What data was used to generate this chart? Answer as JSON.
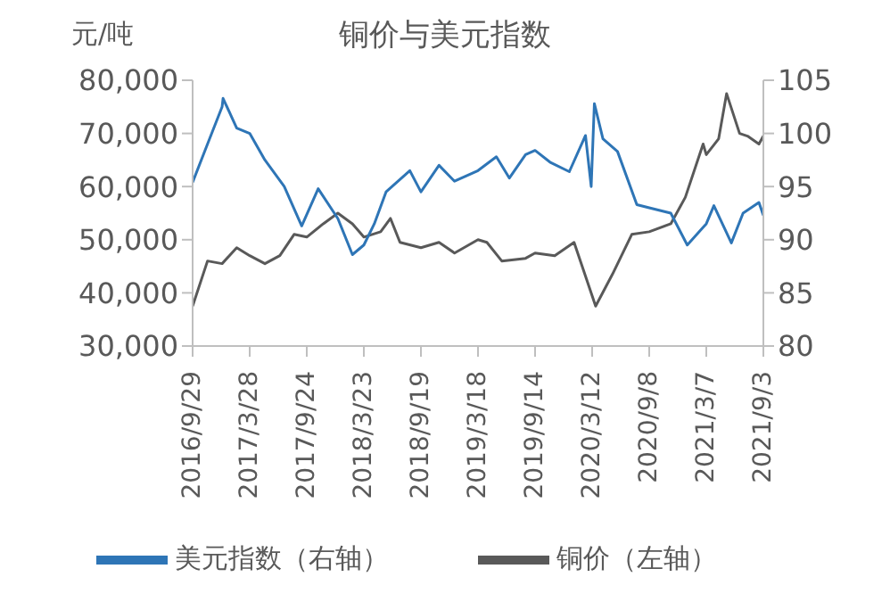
{
  "chart_data": {
    "type": "line",
    "title": "铜价与美元指数",
    "ylabel": "元/吨",
    "xlim": [
      "2016-09-29",
      "2021-09-03"
    ],
    "xticks": [
      {
        "value": "2016-09-29",
        "label": "2016/9/29"
      },
      {
        "value": "2017-03-28",
        "label": "2017/3/28"
      },
      {
        "value": "2017-09-24",
        "label": "2017/9/24"
      },
      {
        "value": "2018-03-23",
        "label": "2018/3/23"
      },
      {
        "value": "2018-09-19",
        "label": "2018/9/19"
      },
      {
        "value": "2019-03-18",
        "label": "2019/3/18"
      },
      {
        "value": "2019-09-14",
        "label": "2019/9/14"
      },
      {
        "value": "2020-03-12",
        "label": "2020/3/12"
      },
      {
        "value": "2020-09-08",
        "label": "2020/9/8"
      },
      {
        "value": "2021-03-07",
        "label": "2021/3/7"
      },
      {
        "value": "2021-09-03",
        "label": "2021/9/3"
      }
    ],
    "ylim": [
      30000,
      80000
    ],
    "yticks": [
      {
        "value": 30000,
        "label": "30,000"
      },
      {
        "value": 40000,
        "label": "40,000"
      },
      {
        "value": 50000,
        "label": "50,000"
      },
      {
        "value": 60000,
        "label": "60,000"
      },
      {
        "value": 70000,
        "label": "70,000"
      },
      {
        "value": 80000,
        "label": "80,000"
      }
    ],
    "y2lim": [
      80,
      105
    ],
    "y2ticks": [
      80,
      85,
      90,
      95,
      100,
      105
    ],
    "grid": false,
    "legend": "bottom",
    "marker": "none",
    "series": [
      {
        "name": "铜价（左轴）",
        "color": "#595959",
        "x": [
          "2016-09-29",
          "2016-11-15",
          "2016-12-31",
          "2017-02-15",
          "2017-03-28",
          "2017-05-15",
          "2017-07-01",
          "2017-08-15",
          "2017-09-24",
          "2017-11-15",
          "2017-12-31",
          "2018-02-15",
          "2018-03-23",
          "2018-05-15",
          "2018-06-15",
          "2018-07-15",
          "2018-09-19",
          "2018-11-15",
          "2019-01-03",
          "2019-03-18",
          "2019-04-15",
          "2019-06-01",
          "2019-08-15",
          "2019-09-14",
          "2019-11-15",
          "2020-01-15",
          "2020-03-23",
          "2020-05-15",
          "2020-07-15",
          "2020-09-08",
          "2020-11-15",
          "2020-12-31",
          "2021-02-25",
          "2021-03-07",
          "2021-04-15",
          "2021-05-10",
          "2021-06-20",
          "2021-07-15",
          "2021-08-20",
          "2021-09-03"
        ],
        "values": [
          37500,
          46000,
          45500,
          48500,
          47000,
          45500,
          47000,
          51000,
          50500,
          53000,
          55000,
          53000,
          50500,
          51500,
          54000,
          49500,
          48500,
          49500,
          47500,
          50000,
          49500,
          46000,
          46500,
          47500,
          47000,
          49500,
          37500,
          43500,
          51000,
          51500,
          53000,
          58000,
          68000,
          66000,
          69000,
          77500,
          70000,
          69500,
          68000,
          69500
        ]
      },
      {
        "name": "美元指数（右轴）",
        "color": "#2e75b6",
        "axis": "y2",
        "x": [
          "2016-09-29",
          "2016-11-15",
          "2016-12-31",
          "2017-01-03",
          "2017-02-15",
          "2017-03-28",
          "2017-05-15",
          "2017-07-15",
          "2017-09-08",
          "2017-10-30",
          "2017-12-31",
          "2018-02-15",
          "2018-03-23",
          "2018-04-25",
          "2018-06-01",
          "2018-08-15",
          "2018-09-19",
          "2018-11-15",
          "2019-01-03",
          "2019-03-18",
          "2019-05-15",
          "2019-06-25",
          "2019-08-15",
          "2019-09-14",
          "2019-10-31",
          "2019-12-31",
          "2020-02-20",
          "2020-03-09",
          "2020-03-19",
          "2020-04-15",
          "2020-05-31",
          "2020-07-31",
          "2020-09-08",
          "2020-11-15",
          "2021-01-06",
          "2021-03-07",
          "2021-03-31",
          "2021-05-25",
          "2021-07-01",
          "2021-08-20",
          "2021-09-03"
        ],
        "values": [
          95.4,
          99,
          102.5,
          103.3,
          100.5,
          100,
          97.5,
          95,
          91.3,
          94.8,
          92,
          88.6,
          89.5,
          91.5,
          94.5,
          96.5,
          94.5,
          97,
          95.5,
          96.5,
          97.8,
          95.8,
          98,
          98.4,
          97.3,
          96.4,
          99.8,
          95,
          102.8,
          99.5,
          98.3,
          93.3,
          93,
          92.5,
          89.5,
          91.5,
          93.2,
          89.7,
          92.5,
          93.5,
          92.3
        ]
      }
    ]
  }
}
